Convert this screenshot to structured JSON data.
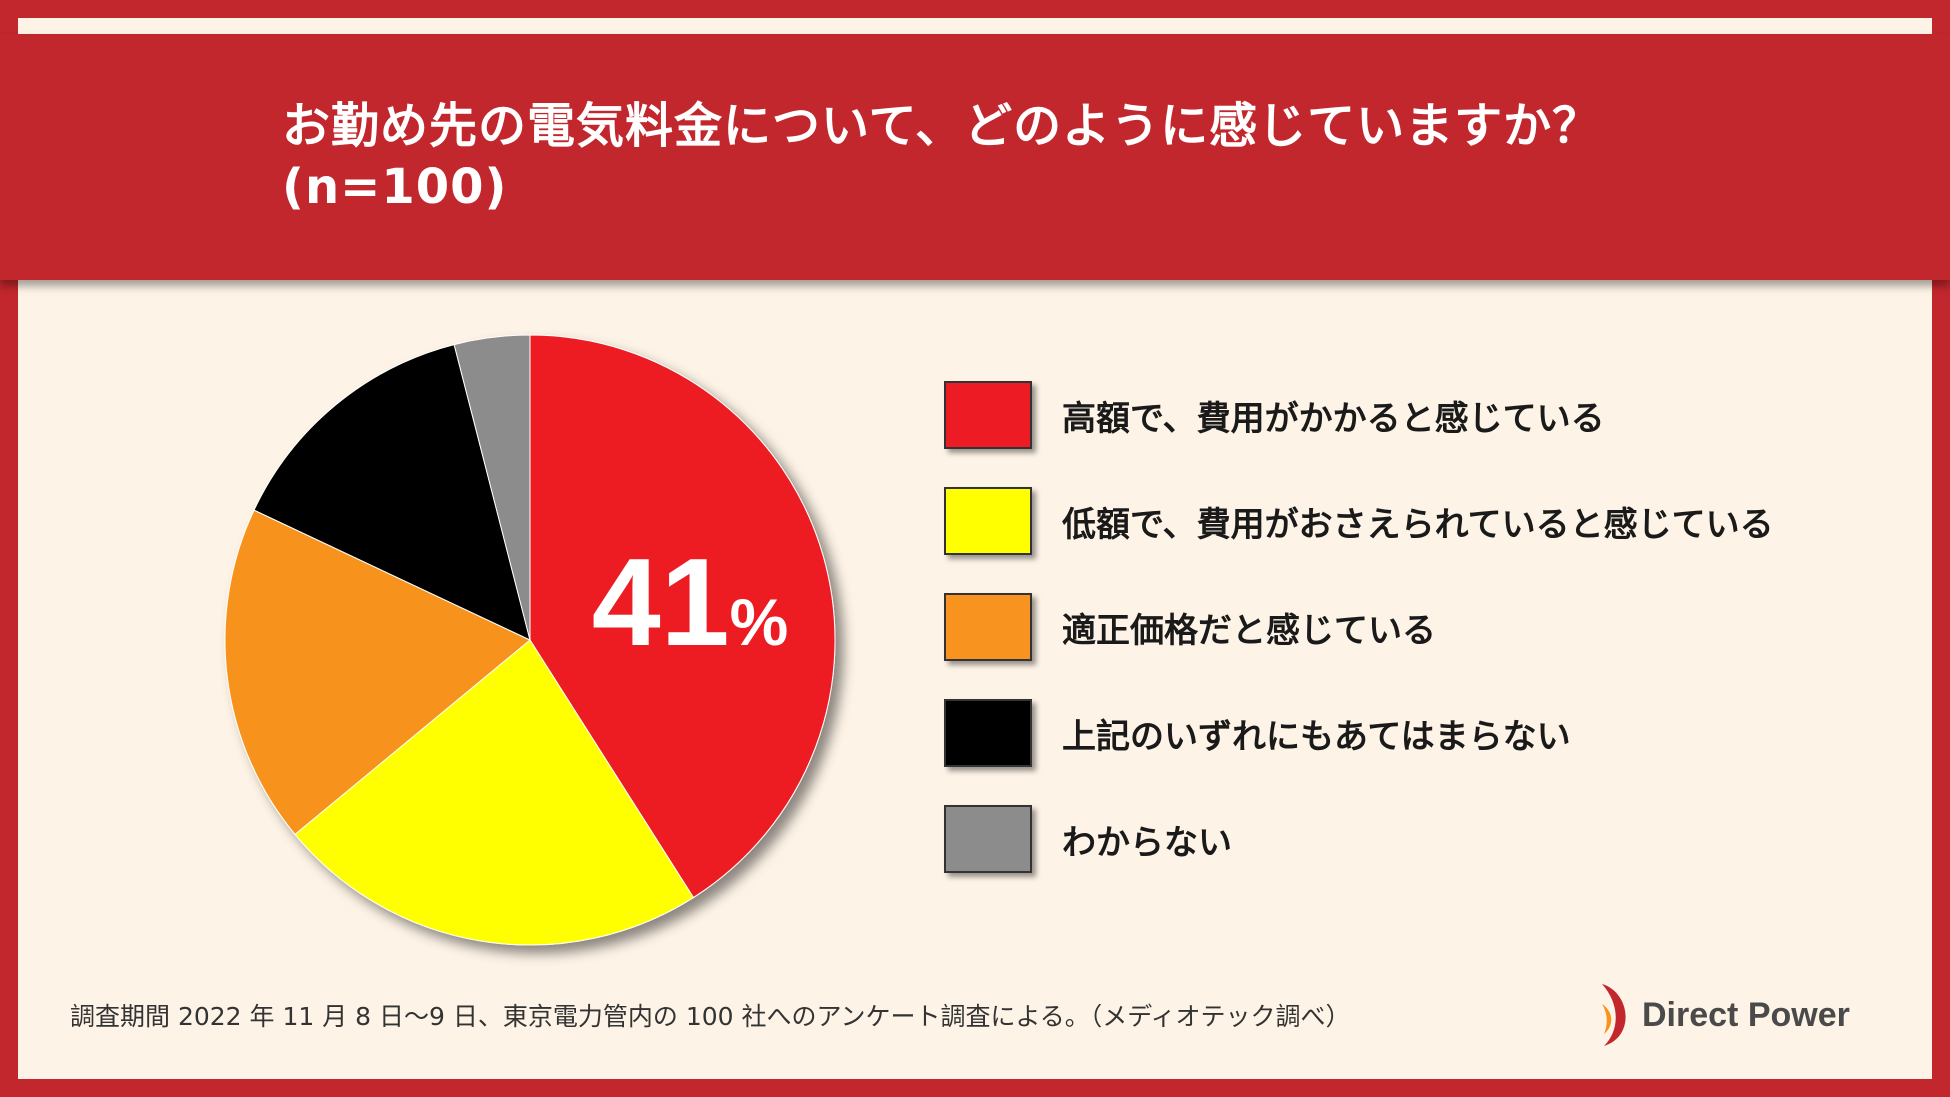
{
  "title": {
    "line1": "お勤め先の電気料金について、どのように感じていますか？",
    "line2": "(n=100)"
  },
  "chart_data": {
    "type": "pie",
    "labels": [
      "高額で、費用がかかると感じている",
      "低額で、費用がおさえられていると感じている",
      "適正価格だと感じている",
      "上記のいずれにもあてはまらない",
      "わからない"
    ],
    "values": [
      41,
      23,
      18,
      14,
      4
    ],
    "colors": [
      "#ed1c24",
      "#ffff00",
      "#f7931e",
      "#000000",
      "#8c8c8c"
    ],
    "annotation": {
      "text": "41%",
      "number": "41",
      "unit": "%"
    },
    "legend_position": "right"
  },
  "footnote": "調査期間 2022 年 11 月 8 日～9 日、東京電力管内の 100 社へのアンケート調査による。（メディオテック調べ）",
  "logo": {
    "text": "Direct Power",
    "colors": [
      "#c1272d",
      "#f7931e"
    ]
  }
}
